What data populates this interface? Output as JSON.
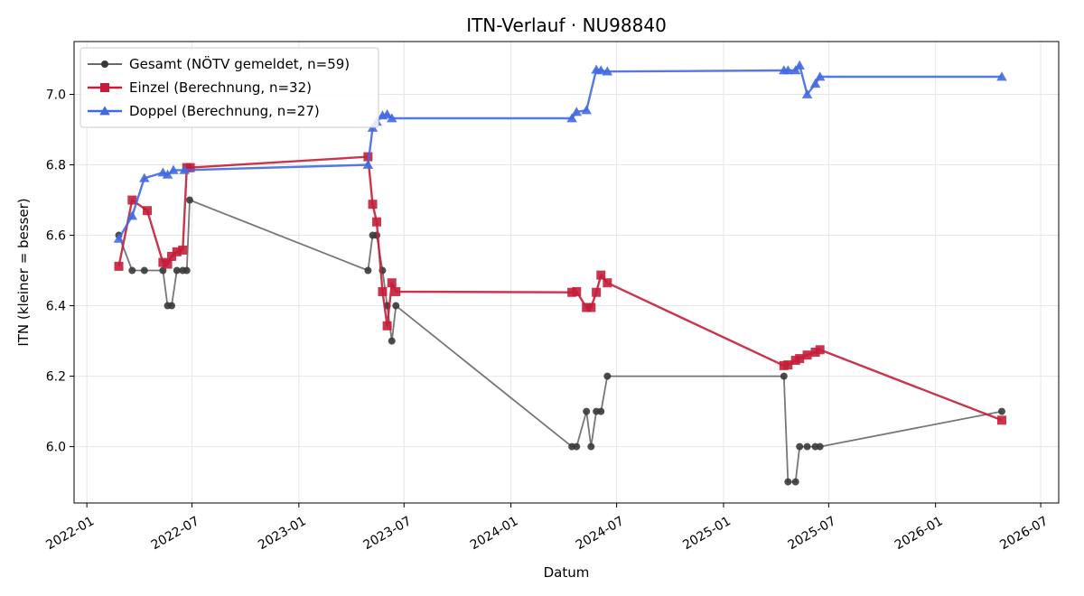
{
  "chart_data": {
    "type": "line",
    "title": "ITN-Verlauf · NU98840",
    "xlabel": "Datum",
    "ylabel": "ITN  (kleiner = besser)",
    "x_ticks": [
      "2022-01",
      "2022-07",
      "2023-01",
      "2023-07",
      "2024-01",
      "2024-07",
      "2025-01",
      "2025-07",
      "2026-01",
      "2026-07"
    ],
    "y_ticks": [
      "6.0",
      "6.2",
      "6.4",
      "6.6",
      "6.8",
      "7.0"
    ],
    "xlim": [
      "2021-12-10",
      "2026-08-01"
    ],
    "ylim": [
      5.84,
      7.15
    ],
    "grid": true,
    "legend_position": "top-left",
    "series": [
      {
        "name": "Gesamt (NÖTV gemeldet, n=59)",
        "color": "#555555",
        "marker": "circle",
        "points": [
          [
            "2022-02-25",
            6.6
          ],
          [
            "2022-03-20",
            6.5
          ],
          [
            "2022-04-10",
            6.5
          ],
          [
            "2022-05-12",
            6.5
          ],
          [
            "2022-05-20",
            6.4
          ],
          [
            "2022-05-27",
            6.4
          ],
          [
            "2022-06-05",
            6.5
          ],
          [
            "2022-06-15",
            6.5
          ],
          [
            "2022-06-22",
            6.5
          ],
          [
            "2022-06-27",
            6.7
          ],
          [
            "2023-04-30",
            6.5
          ],
          [
            "2023-05-08",
            6.6
          ],
          [
            "2023-05-15",
            6.6
          ],
          [
            "2023-05-25",
            6.5
          ],
          [
            "2023-06-02",
            6.4
          ],
          [
            "2023-06-10",
            6.3
          ],
          [
            "2023-06-17",
            6.4
          ],
          [
            "2024-04-15",
            6.0
          ],
          [
            "2024-04-23",
            6.0
          ],
          [
            "2024-05-10",
            6.1
          ],
          [
            "2024-05-18",
            6.0
          ],
          [
            "2024-05-27",
            6.1
          ],
          [
            "2024-06-04",
            6.1
          ],
          [
            "2024-06-15",
            6.2
          ],
          [
            "2025-04-15",
            6.2
          ],
          [
            "2025-04-22",
            5.9
          ],
          [
            "2025-05-05",
            5.9
          ],
          [
            "2025-05-12",
            6.0
          ],
          [
            "2025-05-25",
            6.0
          ],
          [
            "2025-06-08",
            6.0
          ],
          [
            "2025-06-16",
            6.0
          ],
          [
            "2026-04-25",
            6.1
          ]
        ]
      },
      {
        "name": "Einzel (Berechnung, n=32)",
        "color": "#c41e3a",
        "marker": "square",
        "points": [
          [
            "2022-02-25",
            6.512
          ],
          [
            "2022-03-20",
            6.7
          ],
          [
            "2022-04-15",
            6.67
          ],
          [
            "2022-05-12",
            6.523
          ],
          [
            "2022-05-20",
            6.518
          ],
          [
            "2022-05-27",
            6.54
          ],
          [
            "2022-06-05",
            6.553
          ],
          [
            "2022-06-15",
            6.558
          ],
          [
            "2022-06-22",
            6.792
          ],
          [
            "2022-06-28",
            6.792
          ],
          [
            "2023-04-30",
            6.823
          ],
          [
            "2023-05-08",
            6.688
          ],
          [
            "2023-05-15",
            6.638
          ],
          [
            "2023-05-25",
            6.44
          ],
          [
            "2023-06-02",
            6.343
          ],
          [
            "2023-06-10",
            6.465
          ],
          [
            "2023-06-17",
            6.44
          ],
          [
            "2024-04-15",
            6.438
          ],
          [
            "2024-04-23",
            6.44
          ],
          [
            "2024-05-10",
            6.395
          ],
          [
            "2024-05-18",
            6.395
          ],
          [
            "2024-05-27",
            6.438
          ],
          [
            "2024-06-04",
            6.487
          ],
          [
            "2024-06-15",
            6.465
          ],
          [
            "2025-04-15",
            6.23
          ],
          [
            "2025-04-22",
            6.232
          ],
          [
            "2025-05-05",
            6.245
          ],
          [
            "2025-05-12",
            6.25
          ],
          [
            "2025-05-25",
            6.26
          ],
          [
            "2025-06-08",
            6.268
          ],
          [
            "2025-06-16",
            6.275
          ],
          [
            "2026-04-25",
            6.075
          ]
        ]
      },
      {
        "name": "Doppel (Berechnung, n=27)",
        "color": "#4169e1",
        "marker": "triangle",
        "points": [
          [
            "2022-02-25",
            6.59
          ],
          [
            "2022-03-20",
            6.655
          ],
          [
            "2022-04-10",
            6.762
          ],
          [
            "2022-05-12",
            6.778
          ],
          [
            "2022-05-20",
            6.772
          ],
          [
            "2022-05-30",
            6.785
          ],
          [
            "2022-06-18",
            6.785
          ],
          [
            "2023-04-30",
            6.8
          ],
          [
            "2023-05-08",
            6.905
          ],
          [
            "2023-05-15",
            6.922
          ],
          [
            "2023-05-25",
            6.94
          ],
          [
            "2023-06-02",
            6.943
          ],
          [
            "2023-06-10",
            6.932
          ],
          [
            "2024-04-15",
            6.932
          ],
          [
            "2024-04-23",
            6.95
          ],
          [
            "2024-05-10",
            6.955
          ],
          [
            "2024-05-27",
            7.07
          ],
          [
            "2024-06-04",
            7.068
          ],
          [
            "2024-06-15",
            7.065
          ],
          [
            "2025-04-15",
            7.068
          ],
          [
            "2025-04-22",
            7.068
          ],
          [
            "2025-05-05",
            7.068
          ],
          [
            "2025-05-12",
            7.082
          ],
          [
            "2025-05-25",
            7.0
          ],
          [
            "2025-06-08",
            7.03
          ],
          [
            "2025-06-16",
            7.05
          ],
          [
            "2026-04-25",
            7.05
          ]
        ]
      }
    ]
  }
}
